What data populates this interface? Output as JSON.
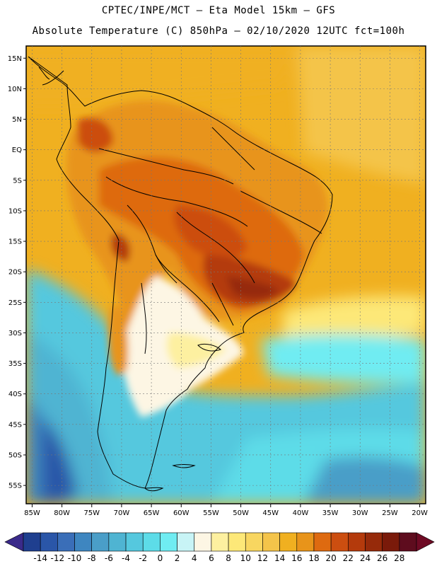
{
  "title_line1": "CPTEC/INPE/MCT –  Eta Model 15km – GFS",
  "title_line2": "Absolute Temperature (C) 850hPa – 02/10/2020 12UTC fct=100h",
  "map": {
    "lon_range": [
      -86,
      -19
    ],
    "lat_range": [
      -58,
      17
    ],
    "lon_labels": [
      "85W",
      "80W",
      "75W",
      "70W",
      "65W",
      "60W",
      "55W",
      "50W",
      "45W",
      "40W",
      "35W",
      "30W",
      "25W",
      "20W"
    ],
    "lon_values": [
      -85,
      -80,
      -75,
      -70,
      -65,
      -60,
      -55,
      -50,
      -45,
      -40,
      -35,
      -30,
      -25,
      -20
    ],
    "lat_labels": [
      "15N",
      "10N",
      "5N",
      "EQ",
      "5S",
      "10S",
      "15S",
      "20S",
      "25S",
      "30S",
      "35S",
      "40S",
      "45S",
      "50S",
      "55S"
    ],
    "lat_values": [
      15,
      10,
      5,
      0,
      -5,
      -10,
      -15,
      -20,
      -25,
      -30,
      -35,
      -40,
      -45,
      -50,
      -55
    ]
  },
  "colorbar": {
    "labels": [
      "-14",
      "-12",
      "-10",
      "-8",
      "-6",
      "-4",
      "-2",
      "0",
      "2",
      "4",
      "6",
      "8",
      "10",
      "12",
      "14",
      "16",
      "18",
      "20",
      "22",
      "24",
      "26",
      "28"
    ],
    "colors": [
      "#1f3f8f",
      "#2a56a8",
      "#3a6eb8",
      "#3e86c0",
      "#4a9ec8",
      "#4fb4d2",
      "#55c8de",
      "#5ddce8",
      "#6fecf2",
      "#c8f4f6",
      "#fdf6e4",
      "#fdf0a0",
      "#fde878",
      "#f8d660",
      "#f4c44a",
      "#f0b020",
      "#e8941a",
      "#de6a10",
      "#cc4e10",
      "#b43a0c",
      "#962a0a",
      "#7a1a0a",
      "#5e0c1e"
    ],
    "under_color": "#3a2a8a",
    "over_color": "#6e0a24"
  }
}
